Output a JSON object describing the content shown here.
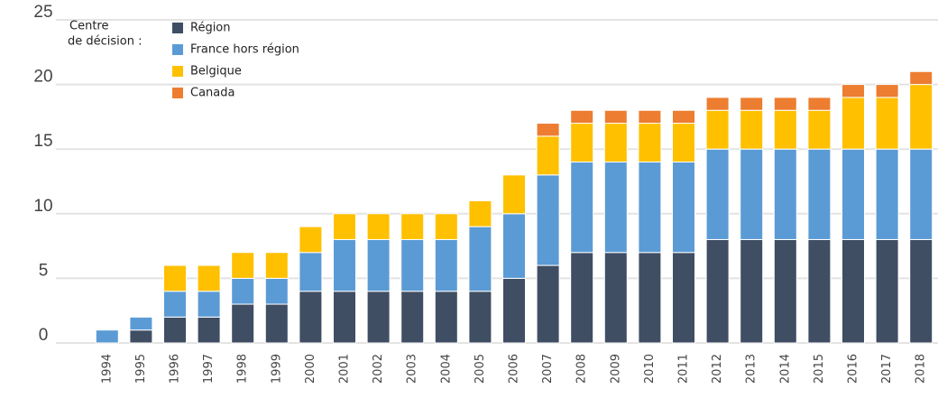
{
  "chart_data": {
    "type": "stacked_bar",
    "legend_title": [
      "Centre",
      "de décision :"
    ],
    "categories": [
      "1994",
      "1995",
      "1996",
      "1997",
      "1998",
      "1999",
      "2000",
      "2001",
      "2002",
      "2003",
      "2004",
      "2005",
      "2006",
      "2007",
      "2008",
      "2009",
      "2010",
      "2011",
      "2012",
      "2013",
      "2014",
      "2015",
      "2016",
      "2017",
      "2018"
    ],
    "series": [
      {
        "name": "Région",
        "color": "#3f4e63",
        "values": [
          0,
          1,
          2,
          2,
          3,
          3,
          4,
          4,
          4,
          4,
          4,
          4,
          5,
          6,
          7,
          7,
          7,
          7,
          8,
          8,
          8,
          8,
          8,
          8,
          8
        ]
      },
      {
        "name": "France hors région",
        "color": "#5b9bd5",
        "values": [
          1,
          1,
          2,
          2,
          2,
          2,
          3,
          4,
          4,
          4,
          4,
          5,
          5,
          7,
          7,
          7,
          7,
          7,
          7,
          7,
          7,
          7,
          7,
          7,
          7
        ]
      },
      {
        "name": "Belgique",
        "color": "#ffc000",
        "values": [
          0,
          0,
          2,
          2,
          2,
          2,
          2,
          2,
          2,
          2,
          2,
          2,
          3,
          3,
          3,
          3,
          3,
          3,
          3,
          3,
          3,
          3,
          4,
          4,
          5
        ]
      },
      {
        "name": "Canada",
        "color": "#ed7d31",
        "values": [
          0,
          0,
          0,
          0,
          0,
          0,
          0,
          0,
          0,
          0,
          0,
          0,
          0,
          1,
          1,
          1,
          1,
          1,
          1,
          1,
          1,
          1,
          1,
          1,
          1
        ]
      }
    ],
    "ylim": [
      0,
      25
    ],
    "yticks": [
      0,
      5,
      10,
      15,
      20,
      25
    ],
    "grid": true,
    "legend": "top-left"
  }
}
